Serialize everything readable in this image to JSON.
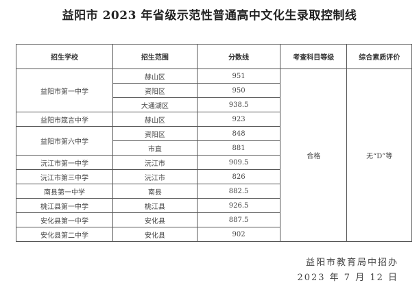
{
  "title": "益阳市 2023 年省级示范性普通高中文化生录取控制线",
  "headers": [
    "招生学校",
    "招生范围",
    "分数线",
    "考查科目等级",
    "综合素质评价"
  ],
  "rows": [
    {
      "school": "益阳市第一中学",
      "range": "赫山区",
      "score": "951"
    },
    {
      "school": "",
      "range": "资阳区",
      "score": "950"
    },
    {
      "school": "",
      "range": "大通湖区",
      "score": "938.5"
    },
    {
      "school": "益阳市箴言中学",
      "range": "赫山区",
      "score": "923"
    },
    {
      "school": "益阳市第六中学",
      "range": "资阳区",
      "score": "848"
    },
    {
      "school": "",
      "range": "市直",
      "score": "881"
    },
    {
      "school": "沅江市第一中学",
      "range": "沅江市",
      "score": "909.5"
    },
    {
      "school": "沅江市第三中学",
      "range": "沅江市",
      "score": "826"
    },
    {
      "school": "南县第一中学",
      "range": "南县",
      "score": "882.5"
    },
    {
      "school": "桃江县第一中学",
      "range": "桃江县",
      "score": "926.5"
    },
    {
      "school": "安化县第一中学",
      "range": "安化县",
      "score": "887.5"
    },
    {
      "school": "安化县第二中学",
      "range": "安化县",
      "score": "902"
    }
  ],
  "subject_level": "合格",
  "quality_eval": "无“D”等",
  "footer": {
    "issuer": "益阳市教育局中招办",
    "date": "2023 年 7 月 12 日"
  }
}
